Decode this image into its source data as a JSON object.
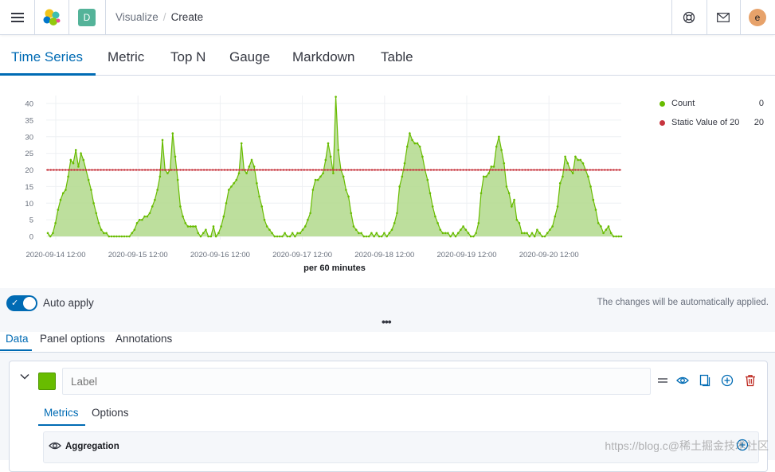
{
  "header": {
    "menu_icon": "hamburger-icon",
    "logo_icon": "elastic-logo-icon",
    "space_initial": "D",
    "breadcrumbs": [
      "Visualize",
      "Create"
    ],
    "help_icon": "lifebuoy-icon",
    "news_icon": "mail-icon",
    "avatar_initial": "e"
  },
  "type_tabs": [
    "Time Series",
    "Metric",
    "Top N",
    "Gauge",
    "Markdown",
    "Table"
  ],
  "active_type_tab": "Time Series",
  "chart_data": {
    "type": "area",
    "xlabel": "per 60 minutes",
    "ylabel": "",
    "ylim": [
      0,
      40
    ],
    "yticks": [
      0,
      5,
      10,
      15,
      20,
      25,
      30,
      35,
      40
    ],
    "xticks": [
      "2020-09-14 12:00",
      "2020-09-15 12:00",
      "2020-09-16 12:00",
      "2020-09-17 12:00",
      "2020-09-18 12:00",
      "2020-09-19 12:00",
      "2020-09-20 12:00"
    ],
    "grid": true,
    "legend_position": "right",
    "series": [
      {
        "name": "Count",
        "legend_value": "0",
        "color": "#68bc00",
        "fill": "#b2d98c",
        "values": [
          1,
          0,
          1,
          4,
          8,
          11,
          13,
          14,
          18,
          23,
          22,
          26,
          21,
          25,
          23,
          20,
          17,
          14,
          10,
          7,
          4,
          2,
          1,
          1,
          0,
          0,
          0,
          0,
          0,
          0,
          0,
          0,
          0,
          1,
          2,
          4,
          5,
          5,
          6,
          6,
          7,
          9,
          11,
          14,
          18,
          29,
          20,
          19,
          20,
          31,
          24,
          17,
          9,
          6,
          4,
          3,
          3,
          3,
          3,
          1,
          0,
          1,
          2,
          0,
          0,
          3,
          0,
          1,
          3,
          6,
          10,
          14,
          15,
          16,
          17,
          19,
          28,
          20,
          19,
          21,
          23,
          21,
          16,
          12,
          9,
          5,
          3,
          2,
          1,
          0,
          0,
          0,
          0,
          1,
          0,
          0,
          1,
          0,
          1,
          1,
          2,
          3,
          5,
          7,
          14,
          17,
          17,
          18,
          19,
          23,
          28,
          24,
          19,
          42,
          26,
          20,
          18,
          14,
          12,
          7,
          3,
          2,
          1,
          1,
          0,
          0,
          0,
          1,
          0,
          1,
          0,
          0,
          1,
          0,
          1,
          2,
          4,
          7,
          15,
          18,
          22,
          27,
          31,
          29,
          28,
          28,
          27,
          24,
          20,
          17,
          13,
          9,
          6,
          4,
          2,
          1,
          1,
          1,
          0,
          1,
          0,
          1,
          2,
          3,
          2,
          1,
          0,
          0,
          1,
          4,
          13,
          18,
          18,
          19,
          21,
          21,
          27,
          30,
          26,
          22,
          15,
          13,
          9,
          11,
          5,
          4,
          1,
          1,
          1,
          0,
          1,
          0,
          2,
          1,
          0,
          0,
          1,
          2,
          3,
          6,
          9,
          16,
          18,
          24,
          22,
          20,
          19,
          24,
          23,
          23,
          22,
          20,
          18,
          15,
          11,
          8,
          4,
          3,
          1,
          2,
          3,
          1,
          0,
          0,
          0,
          0
        ]
      },
      {
        "name": "Static Value of 20",
        "legend_value": "20",
        "color": "#c7353e",
        "values": [
          20
        ]
      }
    ]
  },
  "auto_apply": {
    "enabled": true,
    "label": "Auto apply",
    "note": "The changes will be automatically applied."
  },
  "resize_handle": "•••",
  "editor_tabs": [
    "Data",
    "Panel options",
    "Annotations"
  ],
  "series_panel": {
    "label_placeholder": "Label",
    "swatch_color": "#68bc00",
    "actions": [
      "drag-handle-icon",
      "eye-icon",
      "copy-icon",
      "plus-circle-icon",
      "trash-icon"
    ],
    "tabs": [
      "Metrics",
      "Options"
    ],
    "aggregation_label": "Aggregation"
  },
  "watermark": "https://blog.c@稀土掘金技术社区"
}
